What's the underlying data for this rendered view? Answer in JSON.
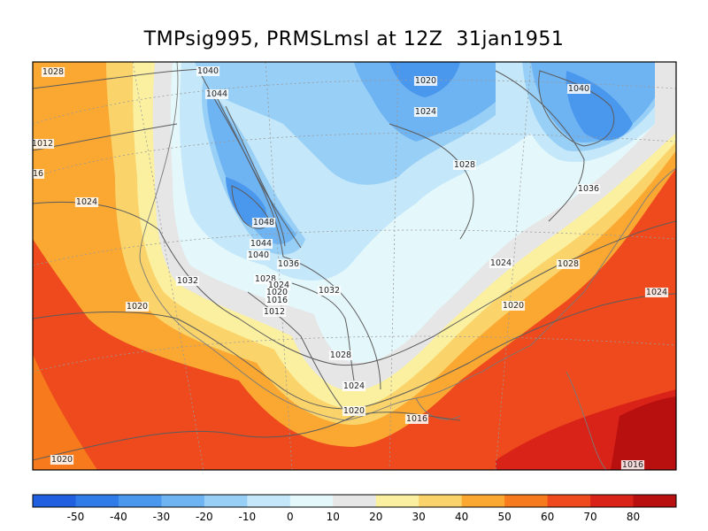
{
  "title": "TMPsig995, PRMSLmsl at 12Z  31jan1951",
  "legend": {
    "colors": [
      "#1f5fe0",
      "#2f7ce8",
      "#4a97ee",
      "#6eb3f2",
      "#98cff6",
      "#c4e7f9",
      "#e4f7fb",
      "#e6e6e6",
      "#fbf0a0",
      "#fad46a",
      "#faa832",
      "#f77b1c",
      "#ee4a1d",
      "#d92318",
      "#b8100f"
    ],
    "tick_labels": [
      "-50",
      "-40",
      "-30",
      "-20",
      "-10",
      "0",
      "10",
      "20",
      "30",
      "40",
      "50",
      "60",
      "70",
      "80"
    ]
  },
  "isobar_labels": [
    {
      "text": "1028"
    },
    {
      "text": "1012"
    },
    {
      "text": "16"
    },
    {
      "text": "1024"
    },
    {
      "text": "1020"
    },
    {
      "text": "1040"
    },
    {
      "text": "1044"
    },
    {
      "text": "1048"
    },
    {
      "text": "1044"
    },
    {
      "text": "1040"
    },
    {
      "text": "1036"
    },
    {
      "text": "1032"
    },
    {
      "text": "1028"
    },
    {
      "text": "1024"
    },
    {
      "text": "1020"
    },
    {
      "text": "1016"
    },
    {
      "text": "1012"
    },
    {
      "text": "1032"
    },
    {
      "text": "1028"
    },
    {
      "text": "1024"
    },
    {
      "text": "1020"
    },
    {
      "text": "1016"
    },
    {
      "text": "1020"
    },
    {
      "text": "1024"
    },
    {
      "text": "1028"
    },
    {
      "text": "1040"
    },
    {
      "text": "1036"
    },
    {
      "text": "1024"
    },
    {
      "text": "1028"
    },
    {
      "text": "1020"
    },
    {
      "text": "1024"
    },
    {
      "text": "1020"
    },
    {
      "text": "1016"
    }
  ]
}
